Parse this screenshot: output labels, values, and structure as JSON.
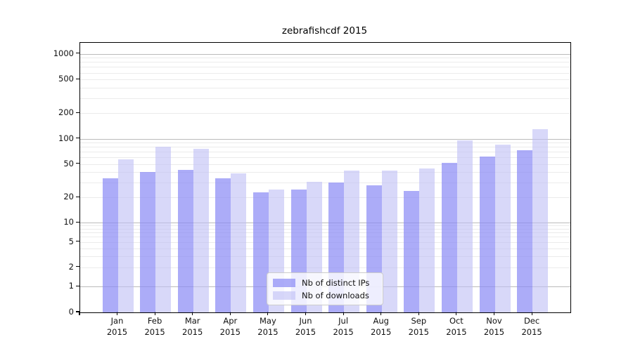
{
  "chart_data": {
    "type": "bar",
    "title": "zebrafishcdf 2015",
    "categories": [
      "Jan",
      "Feb",
      "Mar",
      "Apr",
      "May",
      "Jun",
      "Jul",
      "Aug",
      "Sep",
      "Oct",
      "Nov",
      "Dec"
    ],
    "x_year_label": "2015",
    "series": [
      {
        "name": "Nb of distinct IPs",
        "color": "rgba(137,137,245,0.70)",
        "values": [
          34,
          40,
          43,
          34,
          23,
          25,
          30,
          28,
          24,
          52,
          61,
          73
        ]
      },
      {
        "name": "Nb of downloads",
        "color": "rgba(190,190,245,0.60)",
        "values": [
          57,
          80,
          76,
          39,
          25,
          31,
          42,
          42,
          44,
          95,
          86,
          130
        ]
      }
    ],
    "yticks": [
      0,
      1,
      2,
      5,
      10,
      20,
      50,
      100,
      200,
      500,
      1000
    ],
    "ylim": [
      0,
      1300
    ],
    "yscale": "log-like: linear 0-1 segment, log decades above",
    "xlabel": "",
    "ylabel": "",
    "grid": "horizontal major and minor gridlines",
    "legend_position": "bottom-center inside plot"
  },
  "colors": {
    "major_grid": "#bbbbbb",
    "minor_grid": "#ebebeb",
    "spine": "#000000",
    "text": "#111111",
    "legend_border": "#cccccc",
    "legend_bg": "rgba(255,255,255,0.8)"
  }
}
